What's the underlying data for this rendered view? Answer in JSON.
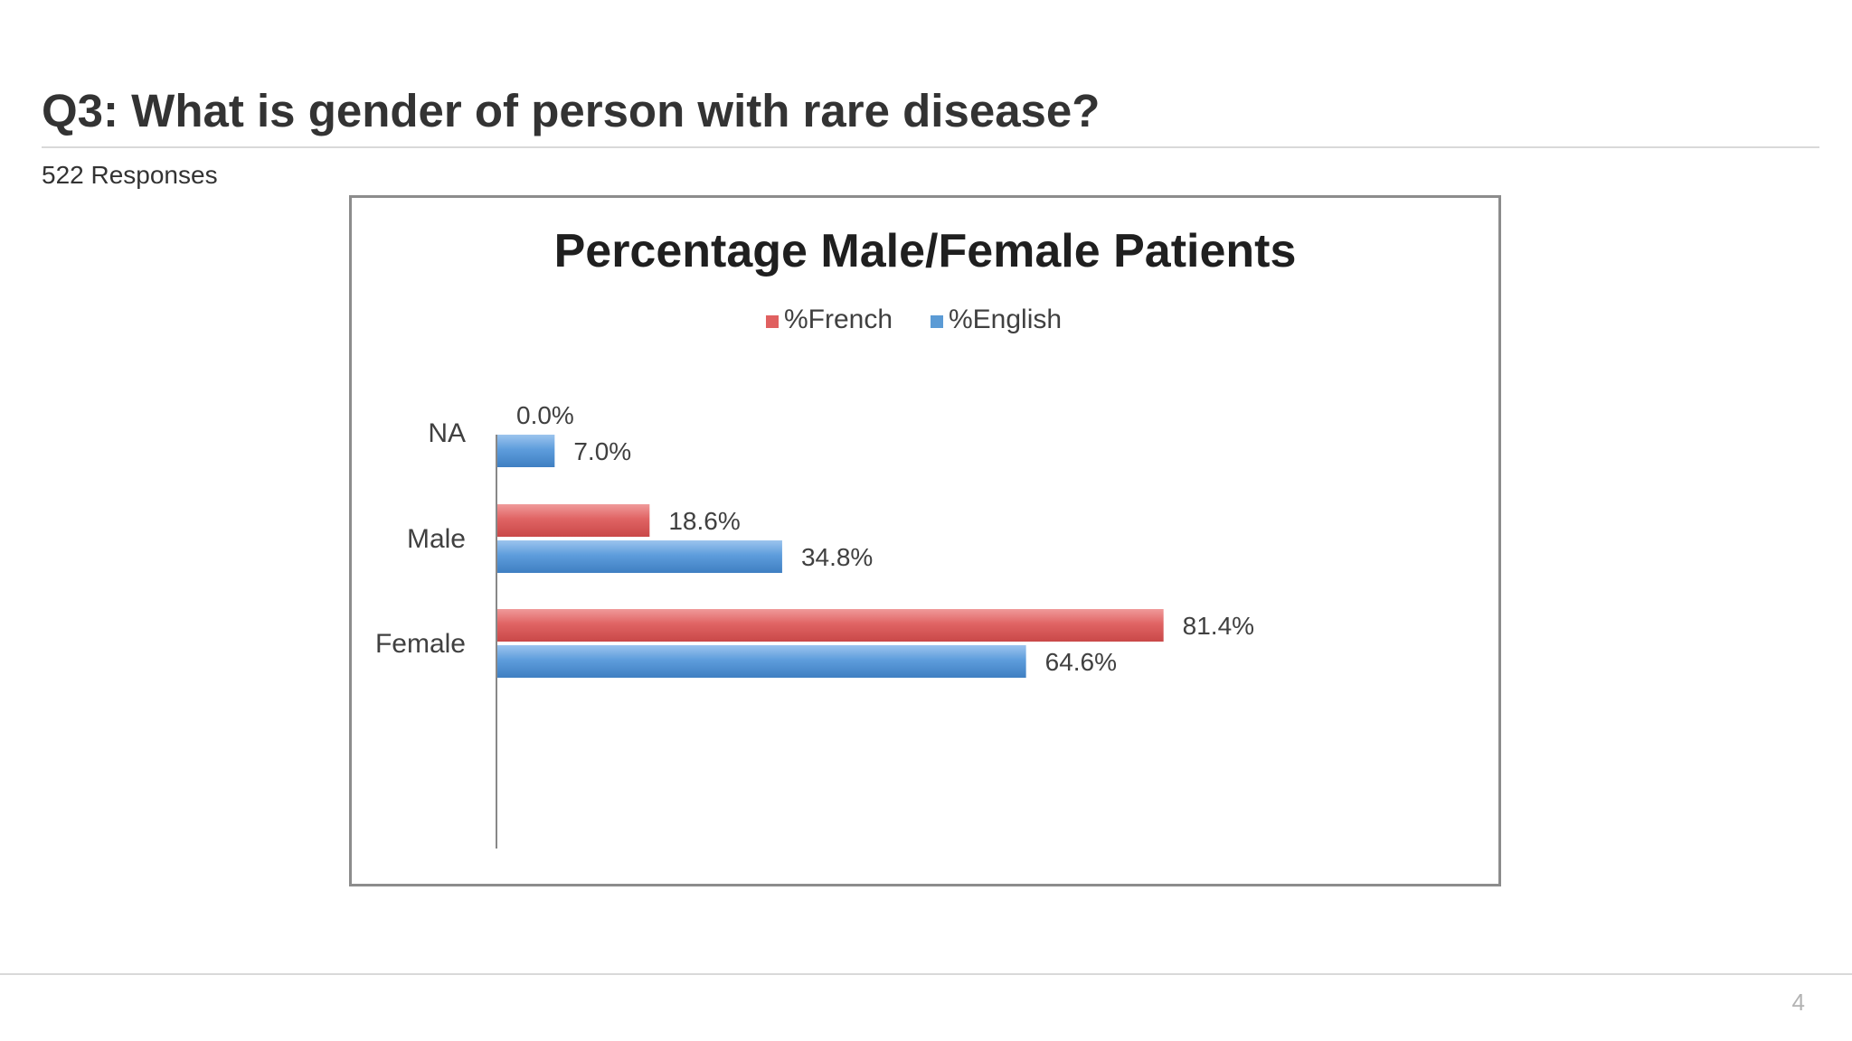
{
  "slide": {
    "title": "Q3: What is gender of person with rare disease?",
    "subtitle": "522 Responses",
    "page_number": "4"
  },
  "chart_data": {
    "type": "bar",
    "orientation": "horizontal",
    "title": "Percentage Male/Female Patients",
    "categories": [
      "NA",
      "Male",
      "Female"
    ],
    "series": [
      {
        "name": "%French",
        "color": "#e06060",
        "values": [
          0.0,
          18.6,
          81.4
        ],
        "labels": [
          "0.0%",
          "18.6%",
          "81.4%"
        ]
      },
      {
        "name": "%English",
        "color": "#5b9bd5",
        "values": [
          7.0,
          34.8,
          64.6
        ],
        "labels": [
          "7.0%",
          "34.8%",
          "64.6%"
        ]
      }
    ],
    "xlim": [
      0,
      100
    ],
    "legend_position": "top",
    "grid": false,
    "x_axis_visible": false
  }
}
